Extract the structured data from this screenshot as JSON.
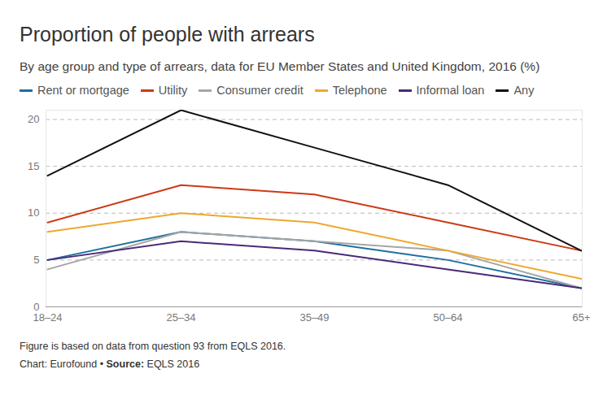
{
  "chart_data": {
    "type": "line",
    "title": "Proportion of people with arrears",
    "subtitle": "By age group and type of arrears, data for EU Member States and United Kingdom, 2016 (%)",
    "categories": [
      "18–24",
      "25–34",
      "35–49",
      "50–64",
      "65+"
    ],
    "series": [
      {
        "name": "Rent or mortgage",
        "color": "#1f6f9e",
        "values": [
          5,
          8,
          7,
          5,
          2
        ]
      },
      {
        "name": "Utility",
        "color": "#cc3a17",
        "values": [
          9,
          13,
          12,
          9,
          6
        ]
      },
      {
        "name": "Consumer credit",
        "color": "#a6a6a6",
        "values": [
          4,
          8,
          7,
          6,
          2
        ]
      },
      {
        "name": "Telephone",
        "color": "#eea82e",
        "values": [
          8,
          10,
          9,
          6,
          3
        ]
      },
      {
        "name": "Informal loan",
        "color": "#4a2a78",
        "values": [
          5,
          7,
          6,
          4,
          2
        ]
      },
      {
        "name": "Any",
        "color": "#111111",
        "values": [
          14,
          21,
          17,
          13,
          6
        ]
      }
    ],
    "ylim": [
      0,
      21
    ],
    "yticks": [
      0,
      5,
      10,
      15,
      20
    ],
    "grid": true,
    "legend": "top",
    "caption": "Figure is based on data from question 93 from EQLS 2016.",
    "credit": "Chart: Eurofound",
    "separator": "•",
    "source_label": "Source:",
    "source": "EQLS 2016"
  }
}
